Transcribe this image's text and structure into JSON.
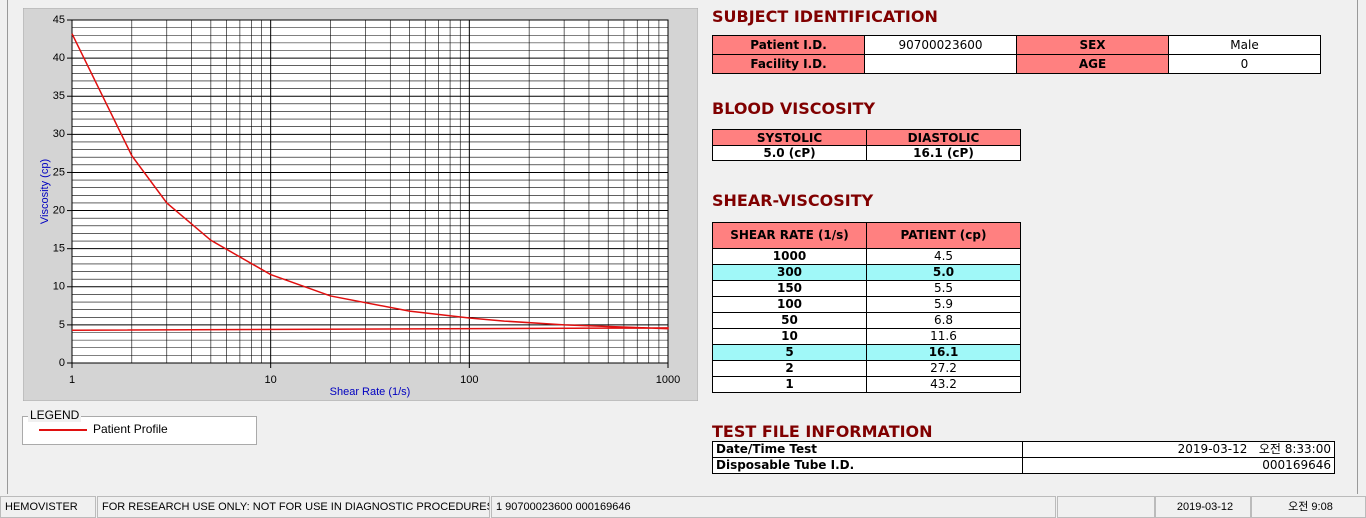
{
  "chart_data": {
    "type": "line",
    "xlabel": "Shear Rate (1/s)",
    "ylabel": "Viscosity (cp)",
    "xscale": "log",
    "grid": true,
    "xlim": [
      1,
      1000
    ],
    "xticks": [
      1,
      10,
      100,
      1000
    ],
    "ylim": [
      0,
      45
    ],
    "yticks": [
      0,
      5,
      10,
      15,
      20,
      25,
      30,
      35,
      40,
      45
    ],
    "legend": {
      "title": "LEGEND",
      "position": "bottom-left"
    },
    "series": [
      {
        "name": "Patient Profile",
        "color": "#e01010",
        "x": [
          1,
          2,
          3,
          5,
          10,
          20,
          50,
          100,
          150,
          300,
          1000,
          1000,
          1
        ],
        "values": [
          43.2,
          27.2,
          21,
          16.1,
          11.6,
          8.8,
          6.8,
          5.9,
          5.5,
          5.0,
          4.5,
          4.6,
          4.3
        ]
      }
    ]
  },
  "subject": {
    "title": "SUBJECT IDENTIFICATION",
    "fields": [
      {
        "label": "Patient I.D.",
        "value": "90700023600"
      },
      {
        "label": "SEX",
        "value": "Male"
      },
      {
        "label": "Facility I.D."
      },
      {
        "label": "AGE",
        "value": "0"
      }
    ]
  },
  "blood_viscosity": {
    "title": "BLOOD VISCOSITY",
    "headers": [
      "SYSTOLIC",
      "DIASTOLIC"
    ],
    "values": [
      "5.0 (cP)",
      "16.1 (cP)"
    ]
  },
  "shear_viscosity": {
    "title": "SHEAR-VISCOSITY",
    "headers": [
      "SHEAR RATE (1/s)",
      "PATIENT (cp)"
    ],
    "rows": [
      [
        "1000",
        "4.5"
      ],
      [
        "300",
        "5.0"
      ],
      [
        "150",
        "5.5"
      ],
      [
        "100",
        "5.9"
      ],
      [
        "50",
        "6.8"
      ],
      [
        "10",
        "11.6"
      ],
      [
        "5",
        "16.1"
      ],
      [
        "2",
        "27.2"
      ],
      [
        "1",
        "43.2"
      ]
    ],
    "highlight_rows": [
      1,
      6
    ]
  },
  "test_file": {
    "title": "TEST FILE INFORMATION",
    "rows": [
      [
        "Date/Time Test",
        "2019-03-12   오전 8:33:00"
      ],
      [
        "Disposable Tube I.D.",
        "000169646"
      ]
    ]
  },
  "status_bar": [
    "HEMOVISTER",
    "FOR RESEARCH USE ONLY: NOT FOR USE IN DIAGNOSTIC PROCEDURES",
    "1  90700023600  000169646",
    "2019-03-12",
    "오전 9:08"
  ]
}
